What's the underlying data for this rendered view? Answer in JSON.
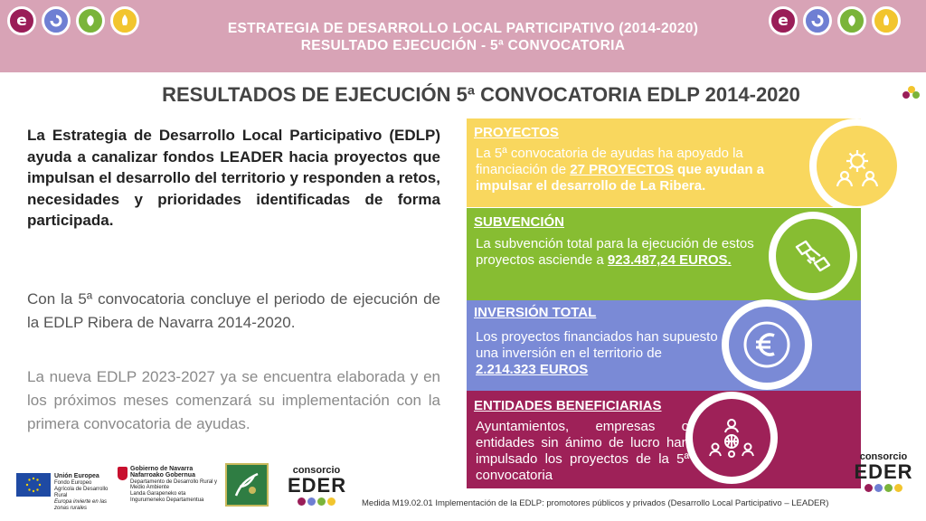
{
  "header": {
    "line1": "ESTRATEGIA DE DESARROLLO LOCAL PARTICIPATIVO (2014-2020)",
    "line2": "RESULTADO EJECUCIÓN -  5ª  CONVOCATORIA",
    "logo_letter": "e"
  },
  "main_title": "RESULTADOS DE EJECUCIÓN 5ª CONVOCATORIA EDLP 2014-2020",
  "intro": "La Estrategia de Desarrollo Local Participativo (EDLP) ayuda a canalizar fondos LEADER hacia proyectos que impulsan el desarrollo del territorio y responden a retos, necesidades y prioridades identificadas de forma participada.",
  "para2": "Con la 5ª convocatoria concluye el periodo de ejecución de la EDLP Ribera de Navarra 2014-2020.",
  "para3": "La nueva EDLP 2023-2027 ya se encuentra elaborada y en los próximos meses comenzará su implementación con la primera convocatoria de ayudas.",
  "bands": {
    "proyectos": {
      "heading": "PROYECTOS",
      "text_a": "La 5ª convocatoria de ayudas ha apoyado la financiación de ",
      "highlight": "27 PROYECTOS",
      "text_b": " que ayudan a impulsar el desarrollo de La Ribera.",
      "icon": "gear-people-icon"
    },
    "subvencion": {
      "heading": "SUBVENCIÓN ",
      "text_a": "La subvención total para la ejecución de estos proyectos asciende a ",
      "highlight": "923.487,24  EUROS.",
      "icon": "handshake-icon"
    },
    "inversion": {
      "heading": "INVERSIÓN TOTAL",
      "text_a": "Los proyectos financiados han supuesto una inversión en el territorio de ",
      "highlight": "2.214.323  EUROS",
      "icon": "euro-icon"
    },
    "entidades": {
      "heading": "ENTIDADES BENEFICIARIAS",
      "text_a": "Ayuntamientos, empresas o entidades sin ánimo de lucro han impulsado los proyectos de la 5ª convocatoria",
      "icon": "network-people-icon"
    }
  },
  "footer": {
    "measure_text": "Medida M19.02.01 Implementación de la EDLP: promotores públicos y privados (Desarrollo Local Participativo – LEADER)",
    "eu": {
      "name": "Unión Europea",
      "fund": "Fondo Europeo Agrícola de Desarrollo Rural",
      "motto": "Europa invierte en las zonas rurales"
    },
    "navarra": {
      "name": "Gobierno de Navarra",
      "name_eu": "Nafarroako Gobernua",
      "dept": "Departamento de Desarrollo Rural y Medio Ambiente",
      "dept_eu": "Landa Garapeneko eta Ingurumeneko Departamentua"
    },
    "consorcio": "consorcio",
    "eder": "EDER"
  },
  "colors": {
    "header_bg": "#d8a3b6",
    "yellow": "#f9d75e",
    "green": "#87bd32",
    "blue": "#7a8ad6",
    "magenta": "#9e2158"
  }
}
